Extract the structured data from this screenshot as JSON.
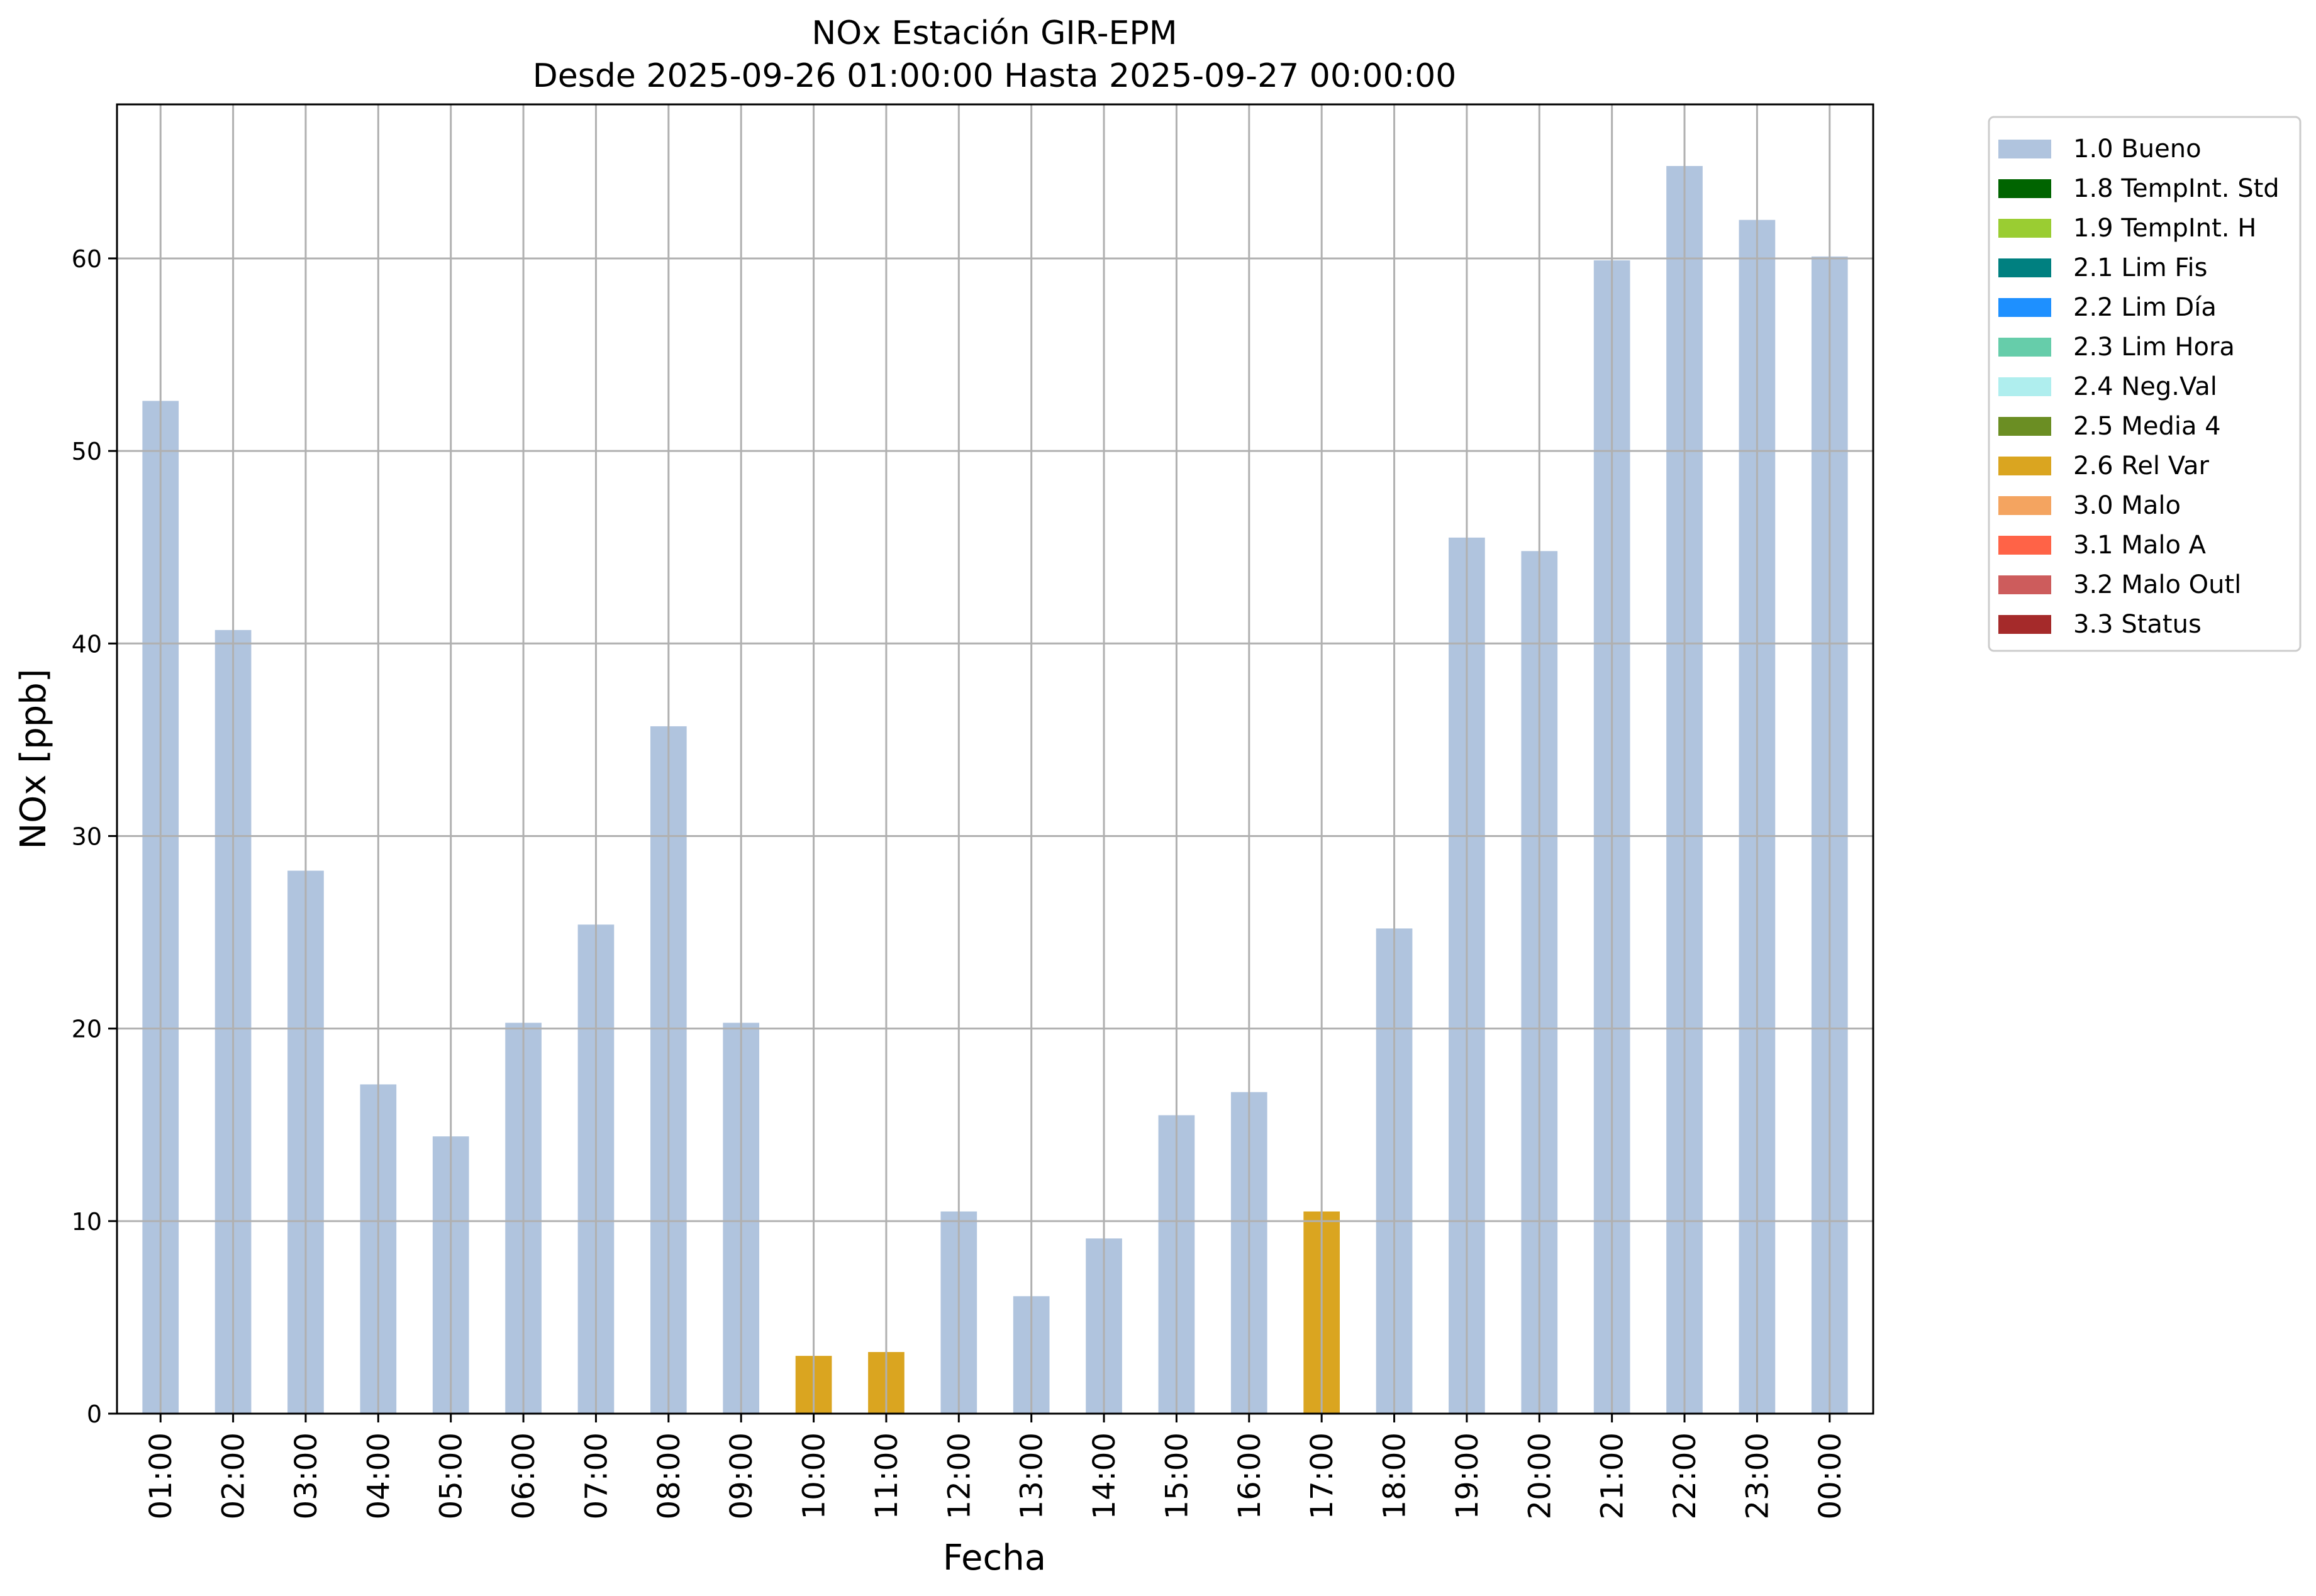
{
  "chart_data": {
    "type": "bar",
    "title": "NOx Estación GIR-EPM",
    "subtitle": "Desde 2025-09-26 01:00:00 Hasta 2025-09-27 00:00:00",
    "xlabel": "Fecha",
    "ylabel": "NOx [ppb]",
    "ylim": [
      0,
      68
    ],
    "yticks": [
      0,
      10,
      20,
      30,
      40,
      50,
      60
    ],
    "grid": true,
    "legend_position": "outside-top-right",
    "categories": [
      "01:00",
      "02:00",
      "03:00",
      "04:00",
      "05:00",
      "06:00",
      "07:00",
      "08:00",
      "09:00",
      "10:00",
      "11:00",
      "12:00",
      "13:00",
      "14:00",
      "15:00",
      "16:00",
      "17:00",
      "18:00",
      "19:00",
      "20:00",
      "21:00",
      "22:00",
      "23:00",
      "00:00"
    ],
    "values": [
      52.6,
      40.7,
      28.2,
      17.1,
      14.4,
      20.3,
      25.4,
      35.7,
      20.3,
      3.0,
      3.2,
      10.5,
      6.1,
      9.1,
      15.5,
      16.7,
      10.5,
      25.2,
      45.5,
      44.8,
      59.9,
      64.8,
      62.0,
      60.1
    ],
    "bar_flags": [
      "1.0 Bueno",
      "1.0 Bueno",
      "1.0 Bueno",
      "1.0 Bueno",
      "1.0 Bueno",
      "1.0 Bueno",
      "1.0 Bueno",
      "1.0 Bueno",
      "1.0 Bueno",
      "2.6 Rel Var",
      "2.6 Rel Var",
      "1.0 Bueno",
      "1.0 Bueno",
      "1.0 Bueno",
      "1.0 Bueno",
      "1.0 Bueno",
      "2.6 Rel Var",
      "1.0 Bueno",
      "1.0 Bueno",
      "1.0 Bueno",
      "1.0 Bueno",
      "1.0 Bueno",
      "1.0 Bueno",
      "1.0 Bueno"
    ],
    "legend": [
      {
        "name": "1.0 Bueno",
        "color": "#b0c4de"
      },
      {
        "name": "1.8 TempInt. Std",
        "color": "#006400"
      },
      {
        "name": "1.9 TempInt. H",
        "color": "#9acd32"
      },
      {
        "name": "2.1 Lim Fis",
        "color": "#008080"
      },
      {
        "name": "2.2 Lim Día",
        "color": "#1e90ff"
      },
      {
        "name": "2.3 Lim Hora",
        "color": "#66cdaa"
      },
      {
        "name": "2.4 Neg.Val",
        "color": "#afeeee"
      },
      {
        "name": "2.5 Media 4",
        "color": "#6b8e23"
      },
      {
        "name": "2.6 Rel Var",
        "color": "#daa520"
      },
      {
        "name": "3.0 Malo",
        "color": "#f4a460"
      },
      {
        "name": "3.1 Malo A",
        "color": "#ff6347"
      },
      {
        "name": "3.2 Malo Outl",
        "color": "#cd5c5c"
      },
      {
        "name": "3.3 Status",
        "color": "#a52a2a"
      }
    ]
  }
}
